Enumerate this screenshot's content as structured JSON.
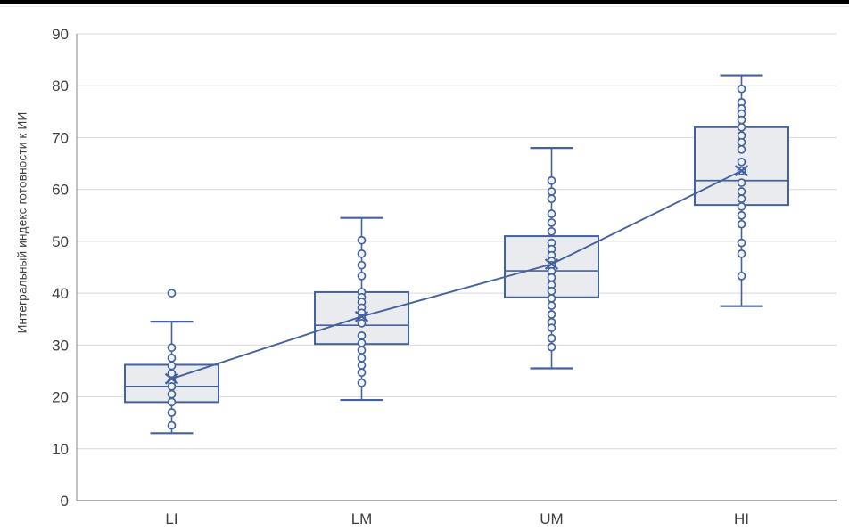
{
  "chart_data": {
    "type": "box",
    "title": "",
    "xlabel": "",
    "ylabel": "Интегральный индекс готовности к ИИ",
    "categories": [
      "LI",
      "LM",
      "UM",
      "HI"
    ],
    "ylim": [
      0,
      90
    ],
    "yticks": [
      0,
      10,
      20,
      30,
      40,
      50,
      60,
      70,
      80,
      90
    ],
    "grid": true,
    "legend": false,
    "series": [
      {
        "name": "LI",
        "whisker_low": 13,
        "q1": 19,
        "median": 22,
        "q3": 26.2,
        "whisker_high": 34.5,
        "mean": 23.5,
        "outliers": [
          40
        ],
        "points": [
          29.5,
          27.5,
          26,
          24.5,
          23,
          22,
          20.5,
          19,
          17,
          14.5
        ]
      },
      {
        "name": "LM",
        "whisker_low": 19.4,
        "q1": 30.2,
        "median": 33.8,
        "q3": 40.2,
        "whisker_high": 54.5,
        "mean": 35.5,
        "outliers": [],
        "points": [
          50.2,
          47.6,
          45.4,
          43.3,
          40.2,
          39.2,
          38.3,
          37.2,
          36.2,
          35.2,
          34.2,
          31.8,
          30.4,
          29,
          27.5,
          26.1,
          24.7,
          22.7
        ]
      },
      {
        "name": "UM",
        "whisker_low": 25.5,
        "q1": 39.2,
        "median": 44.3,
        "q3": 51,
        "whisker_high": 68,
        "mean": 45.6,
        "outliers": [],
        "points": [
          61.7,
          59.6,
          58.2,
          55.3,
          53.6,
          51.9,
          49.7,
          48.5,
          47.3,
          46.2,
          45.4,
          44.2,
          43,
          41.6,
          40.4,
          39,
          37.6,
          35.9,
          34.4,
          33.3,
          31.3,
          29.6
        ]
      },
      {
        "name": "HI",
        "whisker_low": 37.5,
        "q1": 57,
        "median": 61.7,
        "q3": 72,
        "whisker_high": 82,
        "mean": 63.6,
        "outliers": [],
        "points": [
          79.4,
          76.8,
          75.6,
          74.6,
          73.4,
          72,
          70.4,
          69.1,
          67.7,
          65.3,
          63.6,
          61.3,
          59.6,
          58.2,
          56.7,
          55,
          53.3,
          49.7,
          47.6,
          43.3
        ]
      }
    ],
    "trend_means": [
      23.5,
      35.5,
      45.6,
      63.6
    ]
  },
  "colors": {
    "top_bar": "#000000",
    "box_fill": "#e9ebee",
    "box_stroke": "#44639e",
    "median_line": "#44639e",
    "whisker": "#44639e",
    "trend_line": "#44639e",
    "point_stroke": "#44639e",
    "point_fill": "#f2f4f8",
    "mean_marker": "#44639e",
    "gridline": "#d9d9d9",
    "axis_line": "#9a9a9a",
    "bottom_axis": "#8f8f8f",
    "tick_text": "#3d3d3d"
  }
}
